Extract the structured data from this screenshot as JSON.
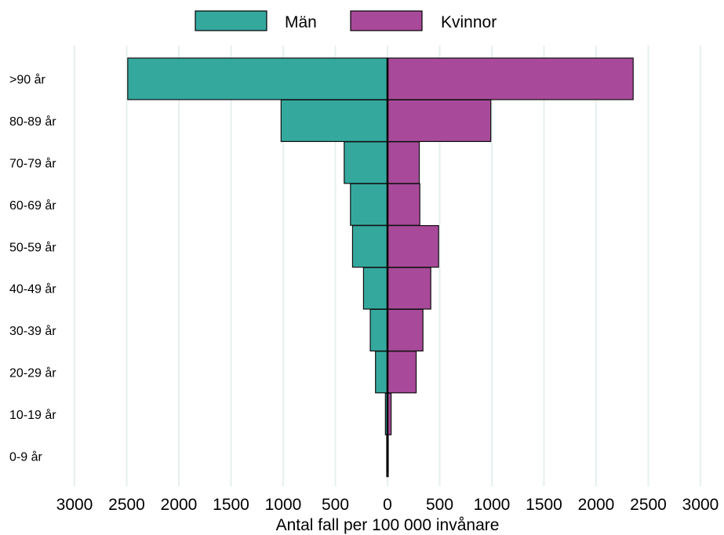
{
  "chart_data": {
    "type": "bar",
    "orientation": "horizontal",
    "layout": "population-pyramid",
    "categories": [
      ">90 år",
      "80-89 år",
      "70-79 år",
      "60-69 år",
      "50-59 år",
      "40-49 år",
      "30-39 år",
      "20-29 år",
      "10-19 år",
      "0-9 år"
    ],
    "series": [
      {
        "name": "Män",
        "color": "#35a89e",
        "side": "left",
        "values": [
          2490,
          1020,
          415,
          355,
          335,
          230,
          165,
          115,
          20,
          5
        ]
      },
      {
        "name": "Kvinnor",
        "color": "#a84a99",
        "side": "right",
        "values": [
          2355,
          990,
          305,
          310,
          490,
          415,
          340,
          275,
          35,
          5
        ]
      }
    ],
    "xticks": [
      3000,
      2500,
      2000,
      1500,
      1000,
      500,
      0,
      500,
      1000,
      1500,
      2000,
      2500,
      3000
    ],
    "xlim": [
      -3000,
      3000
    ],
    "xlabel": "Antal fall per 100 000 invånare",
    "ylabel": "",
    "title": "",
    "grid": "vertical",
    "legend_position": "top-center"
  }
}
